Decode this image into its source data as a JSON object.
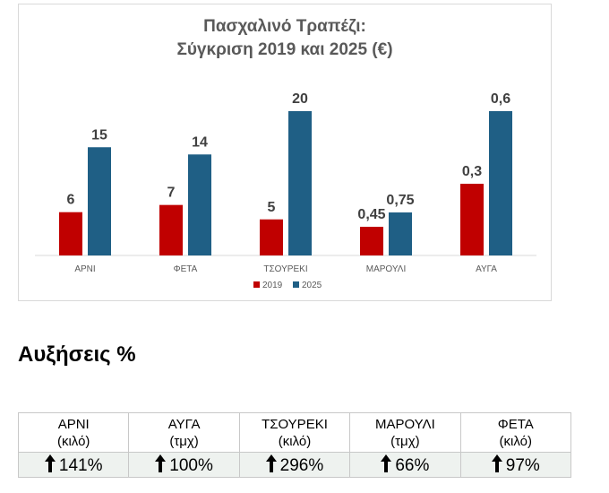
{
  "chart_data": {
    "type": "bar",
    "title_line1": "Πασχαλινό Τραπέζι:",
    "title_line2": "Σύγκριση 2019 και 2025 (€)",
    "categories": [
      "ΑΡΝΙ",
      "ΦΕΤΑ",
      "ΤΣΟΥΡΕΚΙ",
      "ΜΑΡΟΥΛΙ",
      "ΑΥΓΑ"
    ],
    "series": [
      {
        "name": "2019",
        "color": "#c00000",
        "values": [
          6,
          7,
          5,
          0.45,
          0.3
        ],
        "labels": [
          "6",
          "7",
          "5",
          "0,45",
          "0,3"
        ]
      },
      {
        "name": "2025",
        "color": "#1f5f85",
        "values": [
          15,
          14,
          20,
          0.75,
          0.6
        ],
        "labels": [
          "15",
          "14",
          "20",
          "0,75",
          "0,6"
        ]
      }
    ],
    "legend_position": "bottom-center",
    "grid": false
  },
  "section_heading": "Αυξήσεις %",
  "increases": [
    {
      "item": "ΑΡΝΙ",
      "unit": "(κιλό)",
      "pct": "141%"
    },
    {
      "item": "ΑΥΓΑ",
      "unit": "(τμχ)",
      "pct": "100%"
    },
    {
      "item": "ΤΣΟΥΡΕΚΙ",
      "unit": "(κιλό)",
      "pct": "296%"
    },
    {
      "item": "ΜΑΡΟΥΛΙ",
      "unit": "(τμχ)",
      "pct": "66%"
    },
    {
      "item": "ΦΕΤΑ",
      "unit": "(κιλό)",
      "pct": "97%"
    }
  ],
  "arrow_icon": "up-arrow-icon"
}
